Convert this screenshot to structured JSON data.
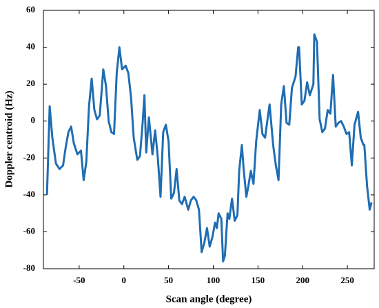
{
  "chart_data": {
    "type": "line",
    "x_label": "Scan angle (degree)",
    "y_label": "Doppler centroid (Hz)",
    "xlim": [
      -90,
      280
    ],
    "xticks": [
      -50,
      0,
      50,
      100,
      150,
      200,
      250
    ],
    "ylim": [
      -80,
      60
    ],
    "yticks": [
      -80,
      -60,
      -40,
      -20,
      0,
      20,
      40,
      60
    ],
    "grid": false,
    "x": [
      -86,
      -83,
      -80,
      -76,
      -72,
      -68,
      -65,
      -62,
      -59,
      -56,
      -52,
      -48,
      -45,
      -42,
      -39,
      -36,
      -33,
      -30,
      -27,
      -23,
      -20,
      -17,
      -14,
      -11,
      -8,
      -5,
      -2,
      2,
      5,
      8,
      11,
      15,
      18,
      21,
      23,
      25,
      28,
      32,
      35,
      38,
      41,
      44,
      47,
      50,
      53,
      56,
      59,
      62,
      65,
      68,
      72,
      75,
      78,
      81,
      84,
      87,
      90,
      93,
      96,
      99,
      102,
      104,
      106,
      109,
      111,
      113,
      116,
      118,
      121,
      124,
      127,
      129,
      132,
      134,
      137,
      139,
      142,
      145,
      148,
      152,
      155,
      158,
      161,
      163,
      167,
      170,
      173,
      176,
      179,
      182,
      185,
      188,
      192,
      195,
      196,
      199,
      202,
      205,
      208,
      212,
      213,
      216,
      219,
      222,
      225,
      228,
      231,
      234,
      237,
      240,
      243,
      246,
      249,
      252,
      255,
      258,
      262,
      265,
      268,
      269,
      272,
      275,
      277
    ],
    "series": [
      {
        "color": "#1f6db3",
        "values": [
          -40,
          8,
          -9,
          -23,
          -26,
          -24,
          -14,
          -6,
          -3,
          -12,
          -18,
          -16,
          -32,
          -22,
          8,
          23,
          6,
          1,
          3,
          28,
          19,
          0,
          -6,
          -7,
          26,
          40,
          28,
          30,
          26,
          13,
          -9,
          -21,
          -19,
          -1,
          14,
          -17,
          2,
          -18,
          -5,
          -20,
          -41,
          -6,
          -2,
          -11,
          -42,
          -39,
          -26,
          -43,
          -45,
          -41,
          -48,
          -43,
          -41,
          -43,
          -48,
          -71,
          -66,
          -58,
          -68,
          -63,
          -55,
          -58,
          -50,
          -53,
          -76,
          -73,
          -50,
          -53,
          -42,
          -54,
          -51,
          -27,
          -13,
          -26,
          -41,
          -36,
          -27,
          -34,
          -11,
          6,
          -7,
          -9,
          2,
          9,
          -13,
          -24,
          -32,
          9,
          19,
          -1,
          -2,
          18,
          24,
          40,
          40,
          9,
          11,
          21,
          14,
          20,
          47,
          43,
          1,
          -6,
          -4,
          6,
          4,
          25,
          -3,
          -1,
          0,
          -3,
          -7,
          -6,
          -24,
          -2,
          5,
          -9,
          -13,
          -13,
          -35,
          -48,
          -44
        ]
      }
    ]
  }
}
